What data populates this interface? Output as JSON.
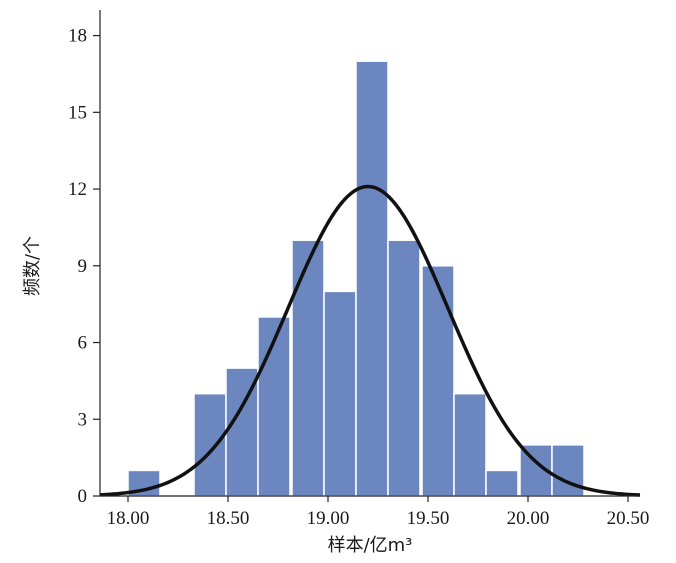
{
  "chart_data": {
    "type": "bar",
    "xlabel": "样本/亿m³",
    "ylabel": "频数/个",
    "x_ticks": [
      "18.00",
      "18.50",
      "19.00",
      "19.50",
      "20.00",
      "20.50"
    ],
    "y_ticks": [
      "0",
      "3",
      "6",
      "9",
      "12",
      "15",
      "18"
    ],
    "xlim": [
      17.86,
      20.56
    ],
    "ylim": [
      0,
      19
    ],
    "bin_width": 0.16,
    "bins": [
      {
        "start": 18.0,
        "value": 1
      },
      {
        "start": 18.16,
        "value": 0
      },
      {
        "start": 18.33,
        "value": 4
      },
      {
        "start": 18.49,
        "value": 5
      },
      {
        "start": 18.65,
        "value": 7
      },
      {
        "start": 18.82,
        "value": 10
      },
      {
        "start": 18.98,
        "value": 8
      },
      {
        "start": 19.14,
        "value": 17
      },
      {
        "start": 19.3,
        "value": 10
      },
      {
        "start": 19.47,
        "value": 9
      },
      {
        "start": 19.63,
        "value": 4
      },
      {
        "start": 19.79,
        "value": 1
      },
      {
        "start": 19.96,
        "value": 2
      },
      {
        "start": 20.12,
        "value": 2
      }
    ],
    "fit_curve": {
      "type": "normal",
      "mean": 19.2,
      "peak": 12.1,
      "sigma": 0.4
    },
    "colors": {
      "bar": "#6c87bf",
      "bar_edge": "#ffffff",
      "curve": "#111111",
      "axis": "#222222"
    }
  }
}
